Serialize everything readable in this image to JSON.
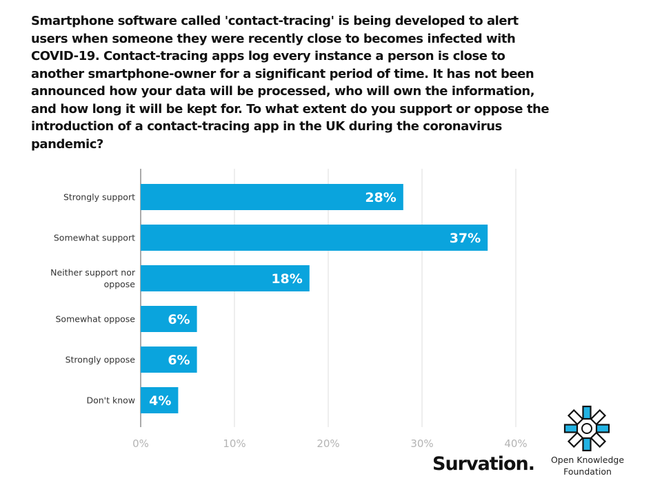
{
  "question": "Smartphone software called 'contact-tracing' is being developed to alert users when someone they were recently close to becomes infected with COVID-19. Contact-tracing apps log every instance a person is close to another smartphone-owner for a significant period of time. It has not been announced how your data will be processed, who will own the information, and how long it will be kept for. To what extent do you support or oppose the introduction of a contact-tracing app in the UK during the coronavirus pandemic?",
  "chart_data": {
    "type": "bar",
    "orientation": "horizontal",
    "categories": [
      "Strongly support",
      "Somewhat support",
      "Neither support nor oppose",
      "Somewhat oppose",
      "Strongly oppose",
      "Don't know"
    ],
    "category_lines": [
      [
        "Strongly support"
      ],
      [
        "Somewhat support"
      ],
      [
        "Neither support nor",
        "oppose"
      ],
      [
        "Somewhat oppose"
      ],
      [
        "Strongly oppose"
      ],
      [
        "Don't know"
      ]
    ],
    "values": [
      28,
      37,
      18,
      6,
      6,
      4
    ],
    "value_labels": [
      "28%",
      "37%",
      "18%",
      "6%",
      "6%",
      "4%"
    ],
    "xlim": [
      0,
      40
    ],
    "ticks": [
      0,
      10,
      20,
      30,
      40
    ],
    "tick_labels": [
      "0%",
      "10%",
      "20%",
      "30%",
      "40%"
    ],
    "grid": true,
    "bar_color": "#0aa4dd"
  },
  "logos": {
    "survation": "Survation.",
    "okf_line1": "Open Knowledge",
    "okf_line2": "Foundation"
  },
  "colors": {
    "okf_blue": "#22b3e3",
    "text": "#111111"
  }
}
